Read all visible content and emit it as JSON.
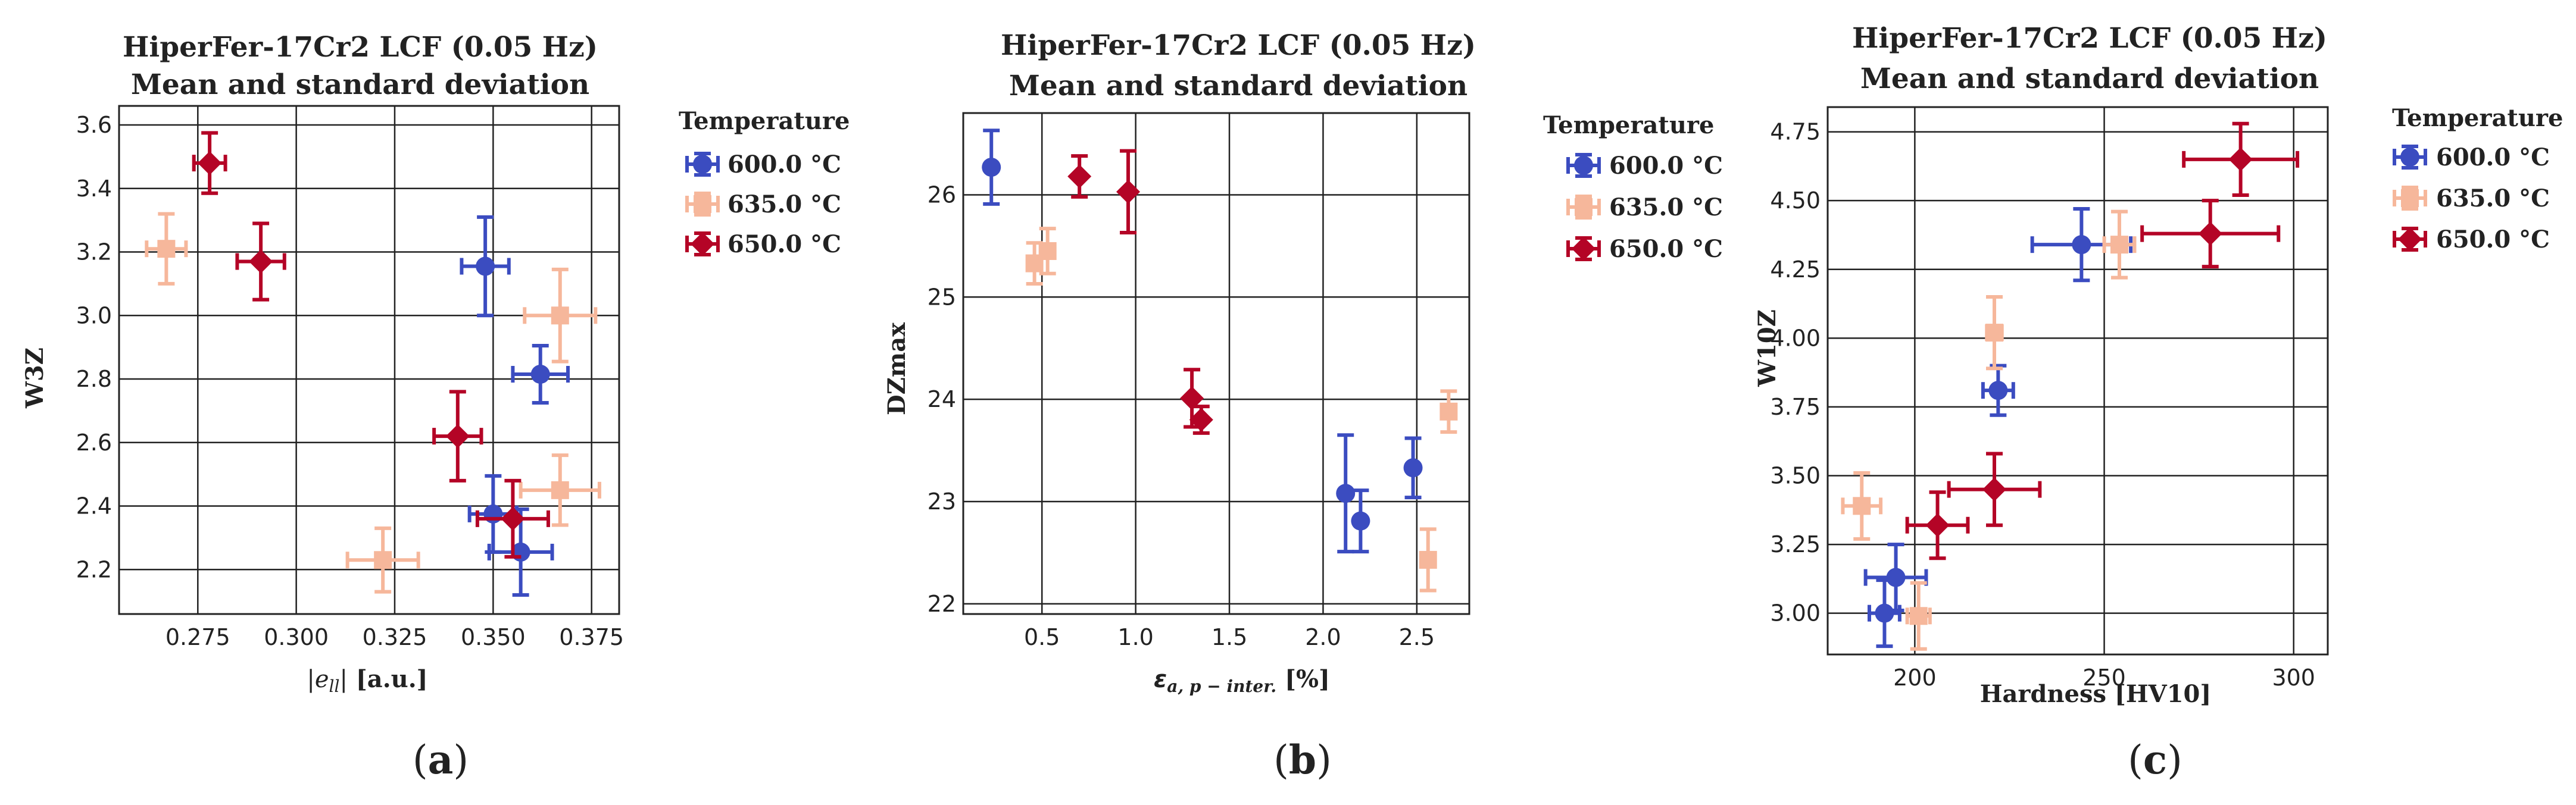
{
  "colors": {
    "600": "#3b4cc0",
    "635": "#f6b79b",
    "650": "#b40426",
    "grid": "#222222"
  },
  "legend": {
    "title": "Temperature",
    "labels": [
      "600.0 °C",
      "635.0 °C",
      "650.0 °C"
    ]
  },
  "chart_data": [
    {
      "type": "scatter",
      "panel_label": "(a)",
      "title_line1": "HiperFer-17Cr2 LCF (0.05 Hz)",
      "title_line2": "Mean and standard deviation",
      "xlabel": "|e_ll| [a.u.]",
      "ylabel": "W3Z",
      "xlim": [
        0.255,
        0.382
      ],
      "ylim": [
        2.06,
        3.66
      ],
      "xticks": [
        0.275,
        0.3,
        0.325,
        0.35,
        0.375
      ],
      "xtick_labels": [
        "0.275",
        "0.300",
        "0.325",
        "0.350",
        "0.375"
      ],
      "yticks": [
        2.2,
        2.4,
        2.6,
        2.8,
        3.0,
        3.2,
        3.4,
        3.6
      ],
      "ytick_labels": [
        "2.2",
        "2.4",
        "2.6",
        "2.8",
        "3.0",
        "3.2",
        "3.4",
        "3.6"
      ],
      "series": [
        {
          "name": "600.0 °C",
          "marker": "circle",
          "points": [
            {
              "x": 0.348,
              "y": 3.155,
              "xerr": 0.006,
              "yerr": 0.155
            },
            {
              "x": 0.362,
              "y": 2.815,
              "xerr": 0.007,
              "yerr": 0.09
            },
            {
              "x": 0.35,
              "y": 2.375,
              "xerr": 0.006,
              "yerr": 0.12
            },
            {
              "x": 0.357,
              "y": 2.255,
              "xerr": 0.008,
              "yerr": 0.135
            }
          ]
        },
        {
          "name": "635.0 °C",
          "marker": "square",
          "points": [
            {
              "x": 0.267,
              "y": 3.21,
              "xerr": 0.005,
              "yerr": 0.11
            },
            {
              "x": 0.367,
              "y": 3.0,
              "xerr": 0.009,
              "yerr": 0.145
            },
            {
              "x": 0.367,
              "y": 2.45,
              "xerr": 0.01,
              "yerr": 0.11
            },
            {
              "x": 0.322,
              "y": 2.23,
              "xerr": 0.009,
              "yerr": 0.1
            }
          ]
        },
        {
          "name": "650.0 °C",
          "marker": "diamond",
          "points": [
            {
              "x": 0.278,
              "y": 3.48,
              "xerr": 0.004,
              "yerr": 0.095
            },
            {
              "x": 0.291,
              "y": 3.17,
              "xerr": 0.006,
              "yerr": 0.12
            },
            {
              "x": 0.341,
              "y": 2.62,
              "xerr": 0.006,
              "yerr": 0.14
            },
            {
              "x": 0.355,
              "y": 2.36,
              "xerr": 0.009,
              "yerr": 0.12
            }
          ]
        }
      ]
    },
    {
      "type": "scatter",
      "panel_label": "(b)",
      "title_line1": "HiperFer-17Cr2 LCF (0.05 Hz)",
      "title_line2": "Mean and standard deviation",
      "xlabel": "ε_a,p–inter. [%]",
      "ylabel": "DZmax",
      "xlim": [
        0.08,
        2.78
      ],
      "ylim": [
        21.9,
        26.8
      ],
      "xticks": [
        0.5,
        1.0,
        1.5,
        2.0,
        2.5
      ],
      "xtick_labels": [
        "0.5",
        "1.0",
        "1.5",
        "2.0",
        "2.5"
      ],
      "yticks": [
        22,
        23,
        24,
        25,
        26
      ],
      "ytick_labels": [
        "22",
        "23",
        "24",
        "25",
        "26"
      ],
      "series": [
        {
          "name": "600.0 °C",
          "marker": "circle",
          "points": [
            {
              "x": 0.23,
              "y": 26.27,
              "xerr": 0.0,
              "yerr": 0.36
            },
            {
              "x": 2.12,
              "y": 23.08,
              "xerr": 0.0,
              "yerr": 0.57
            },
            {
              "x": 2.2,
              "y": 22.81,
              "xerr": 0.0,
              "yerr": 0.3
            },
            {
              "x": 2.48,
              "y": 23.33,
              "xerr": 0.0,
              "yerr": 0.29
            }
          ]
        },
        {
          "name": "635.0 °C",
          "marker": "square",
          "points": [
            {
              "x": 0.46,
              "y": 25.33,
              "xerr": 0.0,
              "yerr": 0.2
            },
            {
              "x": 0.53,
              "y": 25.45,
              "xerr": 0.0,
              "yerr": 0.22
            },
            {
              "x": 2.56,
              "y": 22.43,
              "xerr": 0.0,
              "yerr": 0.3
            },
            {
              "x": 2.67,
              "y": 23.88,
              "xerr": 0.0,
              "yerr": 0.2
            }
          ]
        },
        {
          "name": "650.0 °C",
          "marker": "diamond",
          "points": [
            {
              "x": 0.7,
              "y": 26.18,
              "xerr": 0.0,
              "yerr": 0.2
            },
            {
              "x": 0.96,
              "y": 26.03,
              "xerr": 0.0,
              "yerr": 0.4
            },
            {
              "x": 1.3,
              "y": 24.01,
              "xerr": 0.0,
              "yerr": 0.28
            },
            {
              "x": 1.35,
              "y": 23.8,
              "xerr": 0.0,
              "yerr": 0.13
            }
          ]
        }
      ]
    },
    {
      "type": "scatter",
      "panel_label": "(c)",
      "title_line1": "HiperFer-17Cr2 LCF (0.05 Hz)",
      "title_line2": "Mean and standard deviation",
      "xlabel": "Hardness [HV10]",
      "ylabel": "W10Z",
      "xlim": [
        177,
        309
      ],
      "ylim": [
        2.85,
        4.84
      ],
      "xticks": [
        200,
        250,
        300
      ],
      "xtick_labels": [
        "200",
        "250",
        "300"
      ],
      "yticks": [
        3.0,
        3.25,
        3.5,
        3.75,
        4.0,
        4.25,
        4.5,
        4.75
      ],
      "ytick_labels": [
        "3.00",
        "3.25",
        "3.50",
        "3.75",
        "4.00",
        "4.25",
        "4.50",
        "4.75"
      ],
      "series": [
        {
          "name": "600.0 °C",
          "marker": "circle",
          "points": [
            {
              "x": 192,
              "y": 3.0,
              "xerr": 4,
              "yerr": 0.12
            },
            {
              "x": 195,
              "y": 3.13,
              "xerr": 8,
              "yerr": 0.12
            },
            {
              "x": 222,
              "y": 3.81,
              "xerr": 4,
              "yerr": 0.09
            },
            {
              "x": 244,
              "y": 4.34,
              "xerr": 13,
              "yerr": 0.13
            }
          ]
        },
        {
          "name": "635.0 °C",
          "marker": "square",
          "points": [
            {
              "x": 186,
              "y": 3.39,
              "xerr": 5,
              "yerr": 0.12
            },
            {
              "x": 201,
              "y": 2.99,
              "xerr": 3,
              "yerr": 0.12
            },
            {
              "x": 221,
              "y": 4.02,
              "xerr": 2,
              "yerr": 0.13
            },
            {
              "x": 254,
              "y": 4.34,
              "xerr": 4,
              "yerr": 0.12
            }
          ]
        },
        {
          "name": "650.0 °C",
          "marker": "diamond",
          "points": [
            {
              "x": 206,
              "y": 3.32,
              "xerr": 8,
              "yerr": 0.12
            },
            {
              "x": 221,
              "y": 3.45,
              "xerr": 12,
              "yerr": 0.13
            },
            {
              "x": 278,
              "y": 4.38,
              "xerr": 18,
              "yerr": 0.12
            },
            {
              "x": 286,
              "y": 4.65,
              "xerr": 15,
              "yerr": 0.13
            }
          ]
        }
      ]
    }
  ]
}
